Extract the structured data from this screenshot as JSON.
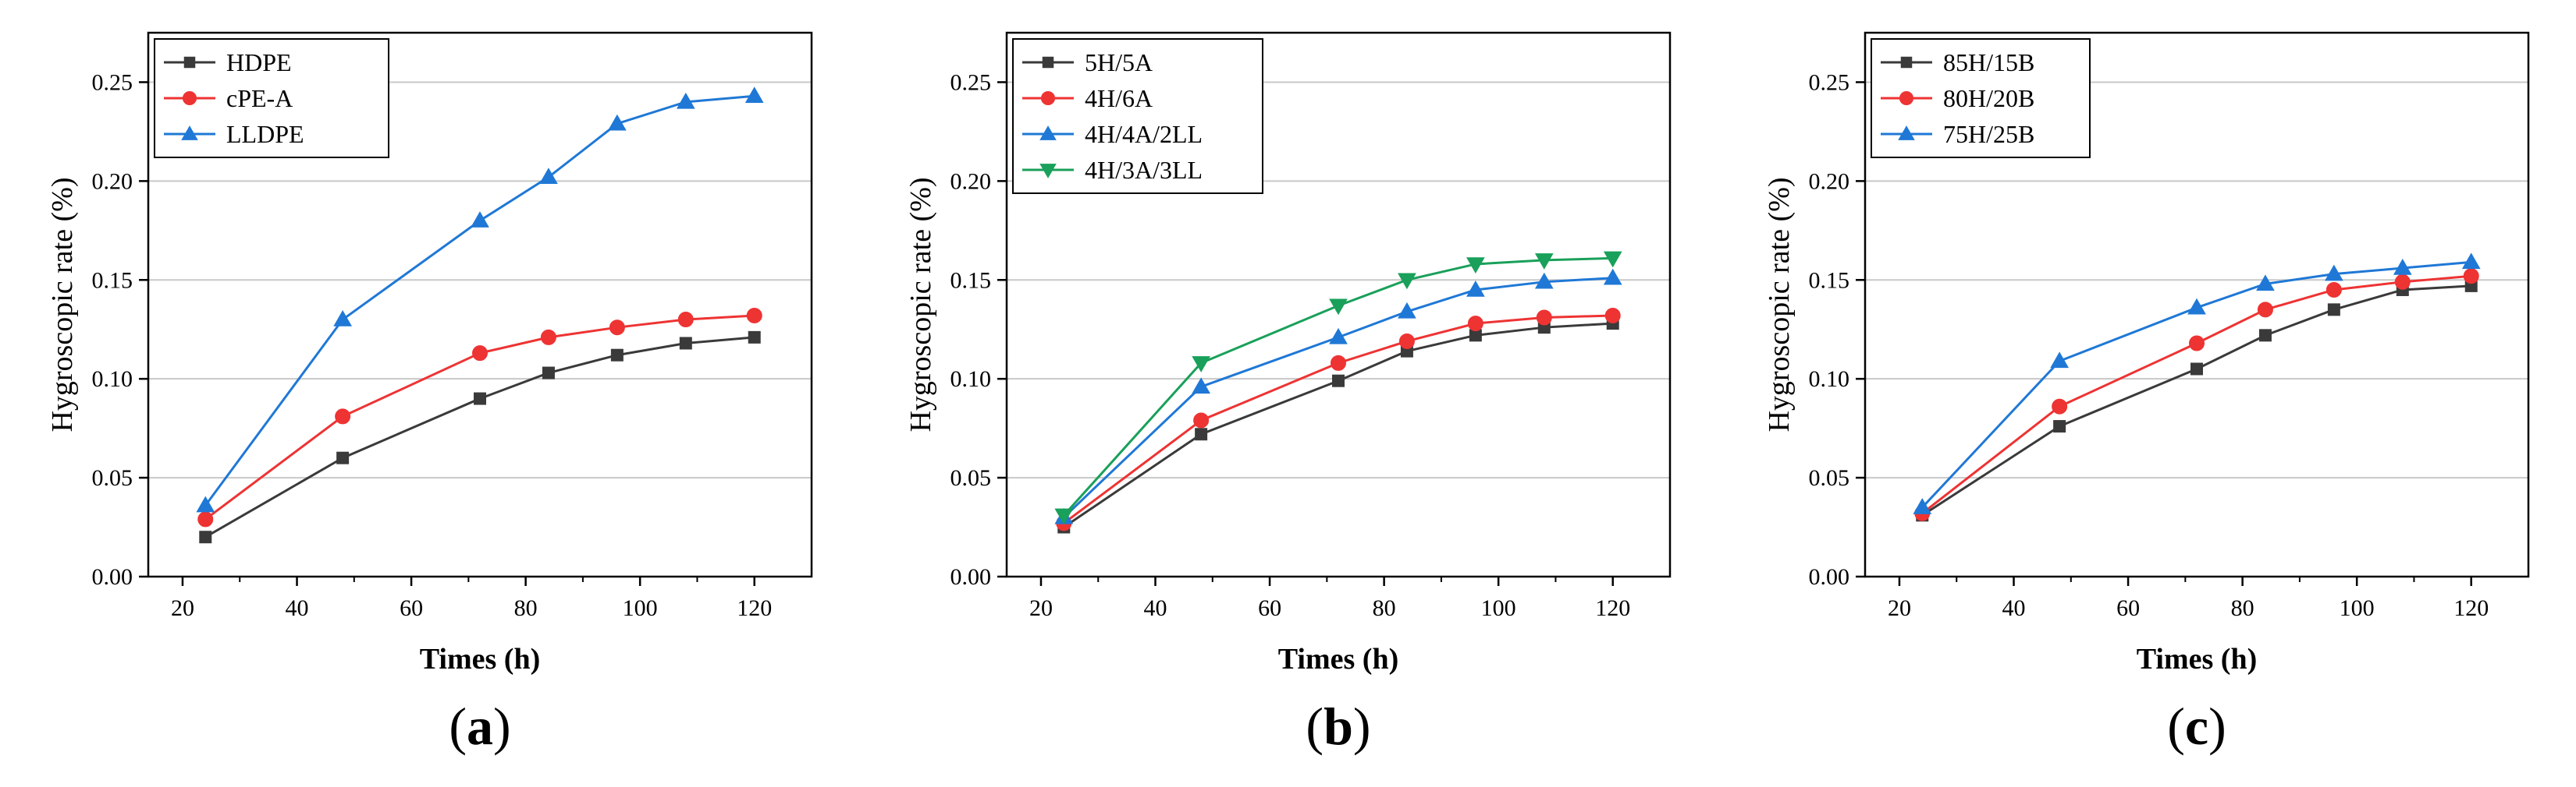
{
  "chart_data": [
    {
      "type": "line",
      "panel_label": "(a)",
      "xlabel": "Times (h)",
      "ylabel": "Hygroscopic rate (%)",
      "xlim": [
        14,
        130
      ],
      "ylim": [
        0,
        0.275
      ],
      "xticks": [
        20,
        40,
        60,
        80,
        100,
        120
      ],
      "yticks": [
        0.0,
        0.05,
        0.1,
        0.15,
        0.2,
        0.25
      ],
      "grid": "horizontal",
      "legend": "top-left",
      "x": [
        24,
        48,
        72,
        84,
        96,
        108,
        120
      ],
      "series": [
        {
          "name": "HDPE",
          "color": "#3a3a3a",
          "marker": "square",
          "values": [
            0.02,
            0.06,
            0.09,
            0.103,
            0.112,
            0.118,
            0.121
          ]
        },
        {
          "name": "cPE-A",
          "color": "#ee3333",
          "marker": "circle",
          "values": [
            0.029,
            0.081,
            0.113,
            0.121,
            0.126,
            0.13,
            0.132
          ]
        },
        {
          "name": "LLDPE",
          "color": "#1f78d6",
          "marker": "triangle-up",
          "values": [
            0.036,
            0.13,
            0.18,
            0.202,
            0.229,
            0.24,
            0.243
          ]
        }
      ]
    },
    {
      "type": "line",
      "panel_label": "(b)",
      "xlabel": "Times (h)",
      "ylabel": "Hygroscopic rate (%)",
      "xlim": [
        14,
        130
      ],
      "ylim": [
        0,
        0.275
      ],
      "xticks": [
        20,
        40,
        60,
        80,
        100,
        120
      ],
      "yticks": [
        0.0,
        0.05,
        0.1,
        0.15,
        0.2,
        0.25
      ],
      "grid": "horizontal",
      "legend": "top-left",
      "x": [
        24,
        48,
        72,
        84,
        96,
        108,
        120
      ],
      "series": [
        {
          "name": "5H/5A",
          "color": "#3a3a3a",
          "marker": "square",
          "values": [
            0.025,
            0.072,
            0.099,
            0.114,
            0.122,
            0.126,
            0.128
          ]
        },
        {
          "name": "4H/6A",
          "color": "#ee3333",
          "marker": "circle",
          "values": [
            0.027,
            0.079,
            0.108,
            0.119,
            0.128,
            0.131,
            0.132
          ]
        },
        {
          "name": "4H/4A/2LL",
          "color": "#1f78d6",
          "marker": "triangle-up",
          "values": [
            0.03,
            0.096,
            0.121,
            0.134,
            0.145,
            0.149,
            0.151
          ]
        },
        {
          "name": "4H/3A/3LL",
          "color": "#19a05a",
          "marker": "triangle-down",
          "values": [
            0.031,
            0.108,
            0.137,
            0.15,
            0.158,
            0.16,
            0.161
          ]
        }
      ]
    },
    {
      "type": "line",
      "panel_label": "(c)",
      "xlabel": "Times (h)",
      "ylabel": "Hygroscopic rate (%)",
      "xlim": [
        14,
        130
      ],
      "ylim": [
        0,
        0.275
      ],
      "xticks": [
        20,
        40,
        60,
        80,
        100,
        120
      ],
      "yticks": [
        0.0,
        0.05,
        0.1,
        0.15,
        0.2,
        0.25
      ],
      "grid": "horizontal",
      "legend": "top-left",
      "x": [
        24,
        48,
        72,
        84,
        96,
        108,
        120
      ],
      "series": [
        {
          "name": "85H/15B",
          "color": "#3a3a3a",
          "marker": "square",
          "values": [
            0.031,
            0.076,
            0.105,
            0.122,
            0.135,
            0.145,
            0.147
          ]
        },
        {
          "name": "80H/20B",
          "color": "#ee3333",
          "marker": "circle",
          "values": [
            0.032,
            0.086,
            0.118,
            0.135,
            0.145,
            0.149,
            0.152
          ]
        },
        {
          "name": "75H/25B",
          "color": "#1f78d6",
          "marker": "triangle-up",
          "values": [
            0.035,
            0.109,
            0.136,
            0.148,
            0.153,
            0.156,
            0.159
          ]
        }
      ]
    }
  ]
}
